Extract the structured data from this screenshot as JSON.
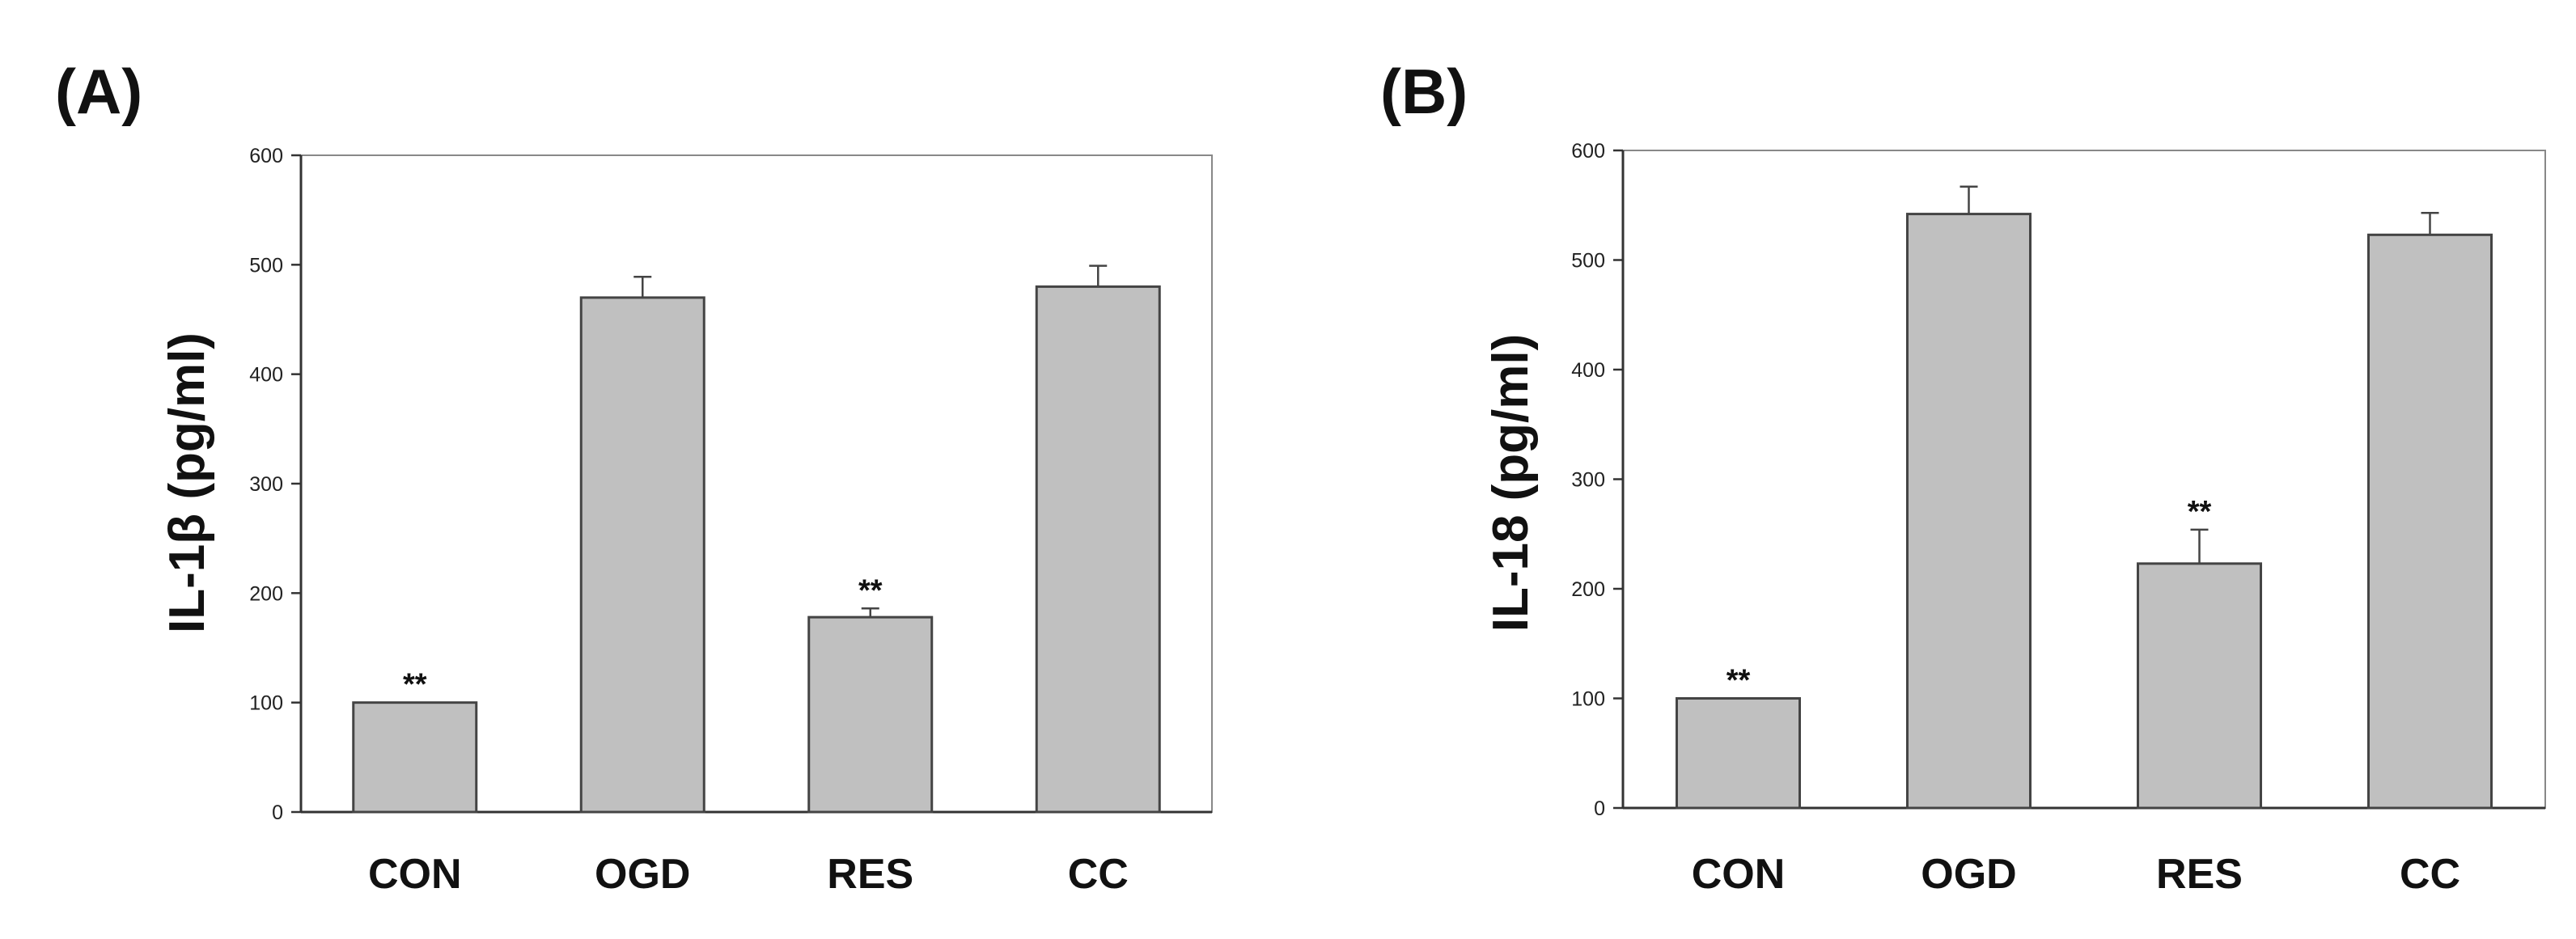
{
  "chart_data": [
    {
      "type": "bar",
      "panel_label": "(A)",
      "ylabel": "IL-1β (pg/ml)",
      "xlabel": "",
      "categories": [
        "CON",
        "OGD",
        "RES",
        "CC"
      ],
      "values": [
        100,
        470,
        178,
        480
      ],
      "errors": [
        0,
        19,
        8,
        19
      ],
      "significance": [
        "**",
        "",
        "**",
        ""
      ],
      "ylim": [
        0,
        600
      ],
      "yticks": [
        0,
        100,
        200,
        300,
        400,
        500,
        600
      ],
      "bar_color": "#c0c0c0",
      "grid": false
    },
    {
      "type": "bar",
      "panel_label": "(B)",
      "ylabel": "IL-18 (pg/ml)",
      "xlabel": "",
      "categories": [
        "CON",
        "OGD",
        "RES",
        "CC"
      ],
      "values": [
        100,
        542,
        223,
        523
      ],
      "errors": [
        0,
        25,
        31,
        20
      ],
      "significance": [
        "**",
        "",
        "**",
        ""
      ],
      "ylim": [
        0,
        600
      ],
      "yticks": [
        0,
        100,
        200,
        300,
        400,
        500,
        600
      ],
      "bar_color": "#c0c0c0",
      "grid": false
    }
  ]
}
